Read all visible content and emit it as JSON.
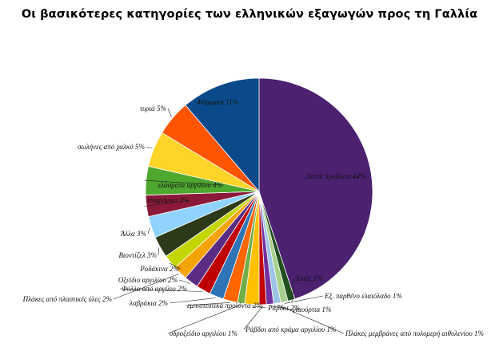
{
  "chart_data": {
    "type": "pie",
    "title": "Οι βασικότερες κατηγορίες των ελληνικών εξαγωγών προς τη Γαλλία",
    "unit": "%",
    "slices": [
      {
        "label": "Λεπτά προϊόντα",
        "value": 44,
        "display": "Λεπτά προϊόντα 44%",
        "color": "#4b2170"
      },
      {
        "label": "Ελιές",
        "value": 1,
        "display": "Ελιές 1%",
        "color": "#1f4e1f"
      },
      {
        "label": "Εξ. παρθένο ελαιόλαδο",
        "value": 1,
        "display": "Εξ. παρθένο ελαιόλαδο 1%",
        "color": "#a8d08d"
      },
      {
        "label": "Πλάκες μεμβράνες από πολυμερή αιθυλενίου",
        "value": 1,
        "display": "Πλάκες μεμβράνες από πολυμερή αιθυλενίου 1%",
        "color": "#9dc3e6"
      },
      {
        "label": "γιαούρτια",
        "value": 1,
        "display": "γιαούρτια 1%",
        "color": "#7030a0"
      },
      {
        "label": "Ράβδοι από κράμα αργιλίου",
        "value": 1,
        "display": "Ράβδοι από κράμα αργιλίου 1%",
        "color": "#c00000"
      },
      {
        "label": "Ράβδοι",
        "value": 2,
        "display": "Ράβδοι 2%",
        "color": "#ffc000"
      },
      {
        "label": "υδροξείδιο αργιλίου",
        "value": 1,
        "display": "υδροξείδιο αργιλίου 1%",
        "color": "#70ad47"
      },
      {
        "label": "εμπιστευτικά προϊόντα",
        "value": 2,
        "display": "εμπιστευτικά προϊόντα 2%",
        "color": "#ff6600"
      },
      {
        "label": "λαβράκια",
        "value": 2,
        "display": "λαβράκια 2%",
        "color": "#2e75b6"
      },
      {
        "label": "Φύλλα από αργίλιο",
        "value": 2,
        "display": "Φύλλα από αργίλιο 2%",
        "color": "#bf0000"
      },
      {
        "label": "Οξείδιο αργιλίου",
        "value": 2,
        "display": "Οξείδιο αργιλίου 2%",
        "color": "#5b2c83"
      },
      {
        "label": "Πλάκες από πλαστικές ύλες",
        "value": 2,
        "display": "Πλάκες από πλαστικές ύλες 2%",
        "color": "#f4a300"
      },
      {
        "label": "Ροδάκινα",
        "value": 2,
        "display": "Ροδάκινα 2%",
        "color": "#c4d600"
      },
      {
        "label": "Βιοντίζελ",
        "value": 3,
        "display": "Βιοντίζελ 3%",
        "color": "#2c3a1a"
      },
      {
        "label": "Άλλα",
        "value": 3,
        "display": "Άλλα 3%",
        "color": "#8fd3fe"
      },
      {
        "label": "σπαράγγια",
        "value": 3,
        "display": "σπαράγγια 3%",
        "color": "#8b1a3a"
      },
      {
        "label": "ελάσματα αργιλίου",
        "value": 4,
        "display": "ελάσματα αργιλίου 4%",
        "color": "#4ea72e"
      },
      {
        "label": "σωλήνες από χαλκό",
        "value": 5,
        "display": "σωλήνες από χαλκό 5%",
        "color": "#ffd428"
      },
      {
        "label": "τυριά",
        "value": 5,
        "display": "τυριά 5%",
        "color": "#ff5500"
      },
      {
        "label": "Φάρμακα",
        "value": 11,
        "display": "Φάρμακα 11%",
        "color": "#0b4a8a"
      }
    ]
  }
}
